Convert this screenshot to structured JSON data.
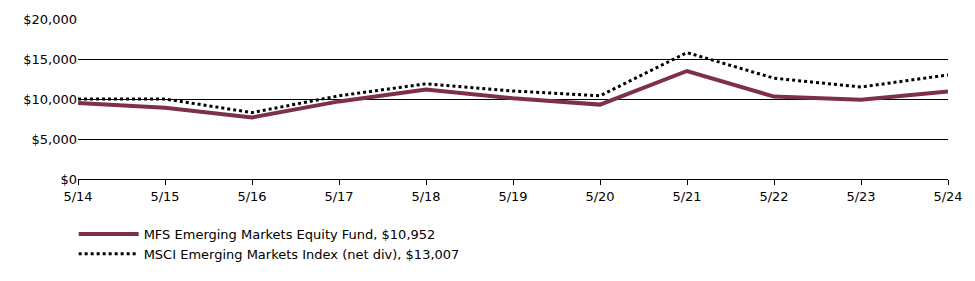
{
  "chart_data": {
    "type": "line",
    "categories": [
      "5/14",
      "5/15",
      "5/16",
      "5/17",
      "5/18",
      "5/19",
      "5/20",
      "5/21",
      "5/22",
      "5/23",
      "5/24"
    ],
    "series": [
      {
        "name": "MFS Emerging Markets Equity Fund, $10,952",
        "color": "#7d3148",
        "line_style": "solid",
        "values": [
          9500,
          8900,
          7700,
          9700,
          11200,
          10100,
          9300,
          13500,
          10300,
          9900,
          10952
        ]
      },
      {
        "name": "MSCI Emerging Markets Index (net div), $13,007",
        "color": "#000000",
        "line_style": "dotted",
        "values": [
          10000,
          10000,
          8300,
          10400,
          11900,
          11000,
          10400,
          15800,
          12600,
          11500,
          13007
        ]
      }
    ],
    "ylim": [
      0,
      20000
    ],
    "yticks": [
      {
        "value": 0,
        "label": "$0"
      },
      {
        "value": 5000,
        "label": "$5,000"
      },
      {
        "value": 10000,
        "label": "$10,000"
      },
      {
        "value": 15000,
        "label": "$15,000"
      },
      {
        "value": 20000,
        "label": "$20,000"
      }
    ],
    "grid": true,
    "legend": "bottom"
  }
}
